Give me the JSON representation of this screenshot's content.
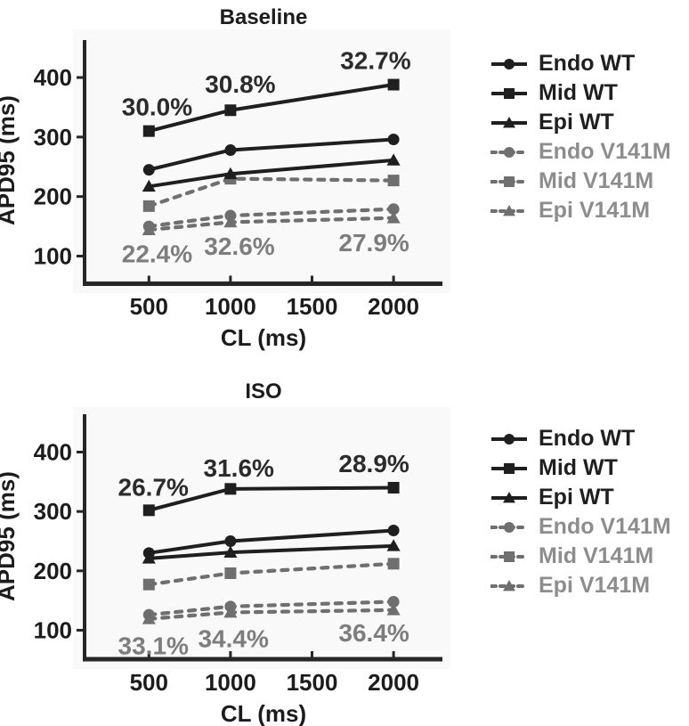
{
  "palette": {
    "black_series": "#1f1f1f",
    "gray_series": "#6f6f6f",
    "gray_legend_text": "#8d8d8d",
    "black_annotation": "#2b2b2b",
    "gray_annotation": "#7d7d7d",
    "axis_color": "#262626",
    "tick_text": "#1c1c1c",
    "panel_tint": "#f4f4f4",
    "background": "#ffffff"
  },
  "chart_data": [
    {
      "type": "line",
      "title": "Baseline",
      "xlabel": "CL (ms)",
      "ylabel": "APD95 (ms)",
      "x": [
        500,
        1000,
        2000
      ],
      "xticks": [
        500,
        1000,
        1500,
        2000
      ],
      "yticks": [
        100,
        200,
        300,
        400
      ],
      "xlim": [
        105,
        2300
      ],
      "ylim": [
        52,
        470
      ],
      "grid": false,
      "legend_position": "right",
      "series": [
        {
          "name": "Endo WT",
          "group": "wt",
          "marker": "circle",
          "dashed": false,
          "values": [
            245,
            278,
            296
          ]
        },
        {
          "name": "Mid WT",
          "group": "wt",
          "marker": "square",
          "dashed": false,
          "values": [
            310,
            345,
            388
          ]
        },
        {
          "name": "Epi WT",
          "group": "wt",
          "marker": "triangle",
          "dashed": false,
          "values": [
            217,
            238,
            261
          ]
        },
        {
          "name": "Endo V141M",
          "group": "v141m",
          "marker": "circle",
          "dashed": true,
          "values": [
            150,
            168,
            179
          ]
        },
        {
          "name": "Mid V141M",
          "group": "v141m",
          "marker": "square",
          "dashed": true,
          "values": [
            184,
            230,
            227
          ]
        },
        {
          "name": "Epi V141M",
          "group": "v141m",
          "marker": "triangle",
          "dashed": true,
          "values": [
            144,
            157,
            164
          ]
        }
      ],
      "annotations": [
        {
          "text": "30.0%",
          "x": 550,
          "y": 350,
          "group": "wt"
        },
        {
          "text": "30.8%",
          "x": 1060,
          "y": 388,
          "group": "wt"
        },
        {
          "text": "32.7%",
          "x": 1890,
          "y": 428,
          "group": "wt"
        },
        {
          "text": "22.4%",
          "x": 550,
          "y": 103,
          "group": "v141m"
        },
        {
          "text": "32.6%",
          "x": 1055,
          "y": 116,
          "group": "v141m"
        },
        {
          "text": "27.9%",
          "x": 1880,
          "y": 122,
          "group": "v141m"
        }
      ]
    },
    {
      "type": "line",
      "title": "ISO",
      "xlabel": "CL (ms)",
      "ylabel": "APD95 (ms)",
      "x": [
        500,
        1000,
        2000
      ],
      "xticks": [
        500,
        1000,
        1500,
        2000
      ],
      "yticks": [
        100,
        200,
        300,
        400
      ],
      "xlim": [
        105,
        2300
      ],
      "ylim": [
        52,
        470
      ],
      "grid": false,
      "legend_position": "right",
      "series": [
        {
          "name": "Endo WT",
          "group": "wt",
          "marker": "circle",
          "dashed": false,
          "values": [
            230,
            250,
            268
          ]
        },
        {
          "name": "Mid WT",
          "group": "wt",
          "marker": "square",
          "dashed": false,
          "values": [
            302,
            338,
            340
          ]
        },
        {
          "name": "Epi WT",
          "group": "wt",
          "marker": "triangle",
          "dashed": false,
          "values": [
            221,
            231,
            242
          ]
        },
        {
          "name": "Endo V141M",
          "group": "v141m",
          "marker": "circle",
          "dashed": true,
          "values": [
            126,
            140,
            148
          ]
        },
        {
          "name": "Mid V141M",
          "group": "v141m",
          "marker": "square",
          "dashed": true,
          "values": [
            177,
            196,
            212
          ]
        },
        {
          "name": "Epi V141M",
          "group": "v141m",
          "marker": "triangle",
          "dashed": true,
          "values": [
            119,
            130,
            134
          ]
        }
      ],
      "annotations": [
        {
          "text": "26.7%",
          "x": 527,
          "y": 340,
          "group": "wt"
        },
        {
          "text": "31.6%",
          "x": 1051,
          "y": 372,
          "group": "wt"
        },
        {
          "text": "28.9%",
          "x": 1880,
          "y": 380,
          "group": "wt"
        },
        {
          "text": "33.1%",
          "x": 527,
          "y": 73,
          "group": "v141m"
        },
        {
          "text": "34.4%",
          "x": 1018,
          "y": 85,
          "group": "v141m"
        },
        {
          "text": "36.4%",
          "x": 1880,
          "y": 95,
          "group": "v141m"
        }
      ]
    }
  ]
}
